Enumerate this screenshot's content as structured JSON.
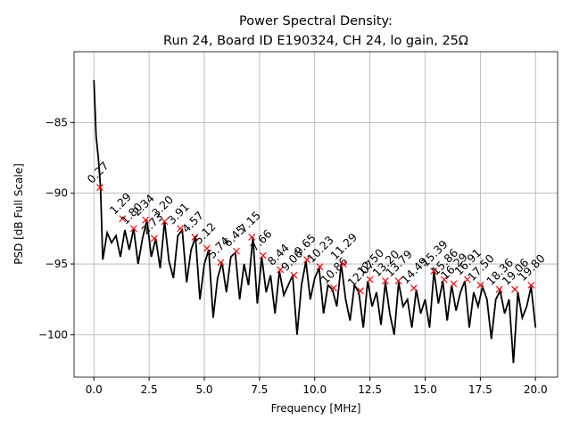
{
  "chart_data": {
    "type": "line",
    "title": "Power Spectral Density:",
    "subtitle": "Run 24, Board ID E190324, CH 24, lo gain, 25Ω",
    "x_label": "Frequency [MHz]",
    "y_label": "PSD [dB Full Scale]",
    "xlim": [
      -0.9,
      21.0
    ],
    "ylim": [
      -103,
      -80
    ],
    "xticks": [
      {
        "value": 0,
        "label": "0.0"
      },
      {
        "value": 2.5,
        "label": "2.5"
      },
      {
        "value": 5,
        "label": "5.0"
      },
      {
        "value": 7.5,
        "label": "7.5"
      },
      {
        "value": 10,
        "label": "10.0"
      },
      {
        "value": 12.5,
        "label": "12.5"
      },
      {
        "value": 15,
        "label": "15.0"
      },
      {
        "value": 17.5,
        "label": "17.5"
      },
      {
        "value": 20,
        "label": "20.0"
      }
    ],
    "yticks": [
      {
        "value": -100,
        "label": "−100"
      },
      {
        "value": -95,
        "label": "−95"
      },
      {
        "value": -90,
        "label": "−90"
      },
      {
        "value": -85,
        "label": "−85"
      }
    ],
    "grid": true,
    "x": [
      0,
      0.1,
      0.2,
      0.3,
      0.4,
      0.6,
      0.8,
      1.0,
      1.2,
      1.4,
      1.6,
      1.8,
      2.0,
      2.2,
      2.4,
      2.6,
      2.8,
      3.0,
      3.2,
      3.4,
      3.6,
      3.8,
      4.0,
      4.2,
      4.4,
      4.6,
      4.8,
      5.0,
      5.2,
      5.4,
      5.6,
      5.8,
      6.0,
      6.2,
      6.4,
      6.6,
      6.8,
      7.0,
      7.2,
      7.4,
      7.6,
      7.8,
      8.0,
      8.2,
      8.4,
      8.6,
      8.8,
      9.0,
      9.2,
      9.4,
      9.6,
      9.8,
      10.0,
      10.2,
      10.4,
      10.6,
      10.8,
      11.0,
      11.2,
      11.4,
      11.6,
      11.8,
      12.0,
      12.2,
      12.4,
      12.6,
      12.8,
      13.0,
      13.2,
      13.4,
      13.6,
      13.8,
      14.0,
      14.2,
      14.4,
      14.6,
      14.8,
      15.0,
      15.2,
      15.4,
      15.6,
      15.8,
      16.0,
      16.2,
      16.4,
      16.6,
      16.8,
      17.0,
      17.2,
      17.4,
      17.6,
      17.8,
      18.0,
      18.2,
      18.4,
      18.6,
      18.8,
      19.0,
      19.2,
      19.4,
      19.6,
      19.8,
      20.0
    ],
    "series": [
      {
        "color": "#000000",
        "values": [
          -82,
          -86,
          -87.5,
          -89.6,
          -94.7,
          -92.8,
          -93.5,
          -93.0,
          -94.5,
          -92.6,
          -94.0,
          -92.5,
          -95.0,
          -93.2,
          -91.9,
          -94.5,
          -93.2,
          -95.3,
          -92.0,
          -94.8,
          -96.0,
          -93.0,
          -92.6,
          -96.3,
          -94.0,
          -93.1,
          -97.5,
          -95.0,
          -94.0,
          -98.8,
          -96.0,
          -94.9,
          -97.0,
          -94.5,
          -94.2,
          -97.5,
          -95.0,
          -96.5,
          -93.1,
          -97.8,
          -94.5,
          -97.0,
          -95.8,
          -98.5,
          -95.5,
          -97.2,
          -96.5,
          -95.8,
          -100.0,
          -96.5,
          -94.8,
          -97.5,
          -96.0,
          -95.3,
          -98.5,
          -96.5,
          -96.8,
          -98.0,
          -95.0,
          -97.5,
          -99.0,
          -96.5,
          -97.0,
          -99.5,
          -96.2,
          -98.0,
          -97.0,
          -99.3,
          -96.3,
          -98.5,
          -100.0,
          -96.3,
          -98.0,
          -97.5,
          -99.5,
          -96.8,
          -98.5,
          -97.5,
          -99.5,
          -95.5,
          -97.8,
          -96.2,
          -99.0,
          -96.5,
          -98.3,
          -97.0,
          -96.2,
          -99.5,
          -97.0,
          -98.0,
          -96.6,
          -97.5,
          -100.3,
          -97.5,
          -96.9,
          -98.5,
          -97.5,
          -102.0,
          -97.0,
          -98.8,
          -98.0,
          -96.6,
          -99.5
        ]
      }
    ],
    "peaks": {
      "color": "#ff0000",
      "x": [
        0.27,
        1.29,
        1.8,
        2.34,
        2.73,
        3.2,
        3.91,
        4.57,
        5.12,
        5.74,
        6.45,
        7.15,
        7.66,
        8.44,
        9.06,
        9.65,
        10.23,
        10.86,
        11.29,
        12.07,
        12.5,
        13.2,
        13.79,
        14.49,
        15.39,
        15.86,
        16.29,
        16.91,
        17.5,
        18.36,
        19.06,
        19.8
      ],
      "values": [
        -89.6,
        -91.8,
        -92.5,
        -91.9,
        -93.2,
        -92.0,
        -92.5,
        -93.1,
        -93.9,
        -94.9,
        -94.1,
        -93.1,
        -94.4,
        -95.4,
        -95.8,
        -94.7,
        -95.2,
        -96.7,
        -95.0,
        -96.9,
        -96.1,
        -96.2,
        -96.2,
        -96.7,
        -95.5,
        -96.1,
        -96.4,
        -96.1,
        -96.5,
        -96.8,
        -96.8,
        -96.5
      ],
      "labels": [
        "0.27",
        "1.29",
        "1.80",
        "2.34",
        "2.73",
        "3.20",
        "3.91",
        "4.57",
        "5.12",
        "5.74",
        "6.45",
        "7.15",
        "7.66",
        "8.44",
        "9.06",
        "9.65",
        "10.23",
        "10.86",
        "11.29",
        "12.07",
        "12.50",
        "13.20",
        "13.79",
        "14.49",
        "15.39",
        "15.86",
        "16.29",
        "16.91",
        "17.50",
        "18.36",
        "19.06",
        "19.80"
      ]
    }
  }
}
